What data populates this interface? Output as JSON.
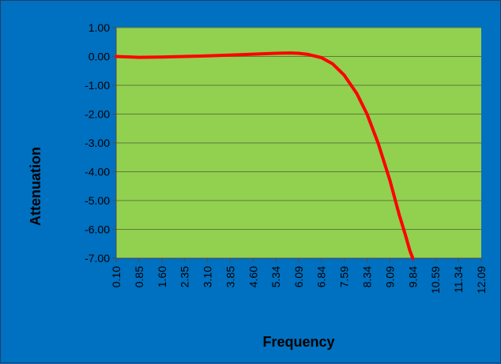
{
  "chart_data": {
    "type": "line",
    "title": "",
    "xlabel": "Frequency",
    "ylabel": "Attenuation",
    "x_tick_labels": [
      "0.10",
      "0.85",
      "1.60",
      "2.35",
      "3.10",
      "3.85",
      "4.60",
      "5.34",
      "6.09",
      "6.84",
      "7.59",
      "8.34",
      "9.09",
      "9.84",
      "10.59",
      "11.34",
      "12.09"
    ],
    "y_tick_labels": [
      "1.00",
      "0.00",
      "-1.00",
      "-2.00",
      "-3.00",
      "-4.00",
      "-5.00",
      "-6.00",
      "-7.00"
    ],
    "xlim": [
      0.1,
      12.09
    ],
    "ylim": [
      -7.0,
      1.0
    ],
    "grid": "horizontal",
    "legend": "none",
    "colors": {
      "background": "#0070c0",
      "plot_area": "#92d050",
      "line": "#ff0000",
      "gridline": "#5a7d3a"
    },
    "series": [
      {
        "x": [
          0.1,
          0.85,
          1.6,
          2.35,
          3.1,
          3.85,
          4.6,
          5.34,
          5.8,
          6.09,
          6.4,
          6.84,
          7.2,
          7.59,
          8.0,
          8.34,
          8.7,
          9.09,
          9.4,
          9.6,
          9.75,
          9.84
        ],
        "values": [
          0.0,
          -0.03,
          -0.02,
          0.0,
          0.02,
          0.05,
          0.08,
          0.11,
          0.12,
          0.11,
          0.07,
          -0.04,
          -0.25,
          -0.65,
          -1.28,
          -2.0,
          -3.0,
          -4.3,
          -5.5,
          -6.2,
          -6.75,
          -7.0
        ]
      }
    ]
  }
}
